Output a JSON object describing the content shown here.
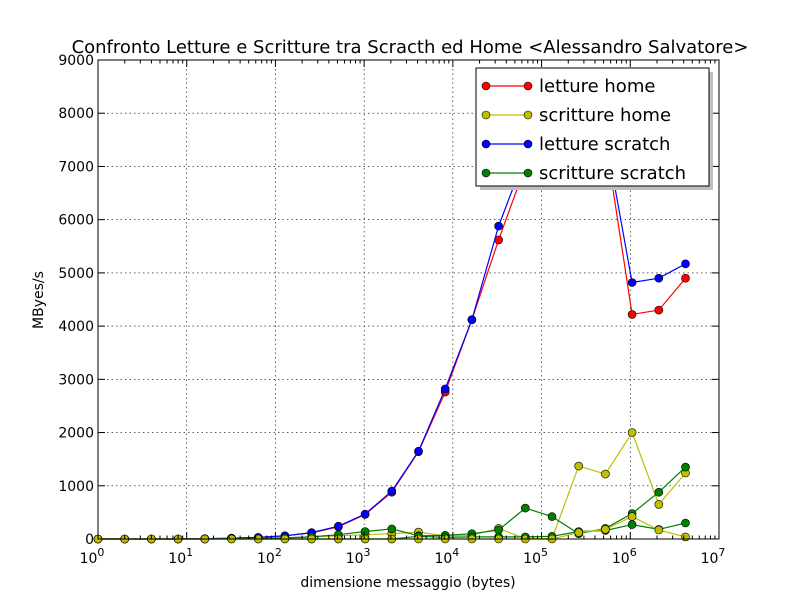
{
  "chart_data": {
    "type": "line",
    "title": "Confronto Letture e Scritture tra Scracth ed Home  <Alessandro Salvatore>",
    "xlabel": "dimensione messaggio (bytes)",
    "ylabel": "MByes/s",
    "xscale": "log",
    "xlim": [
      1,
      10000000
    ],
    "ylim": [
      0,
      9000
    ],
    "grid": true,
    "legend_position": "top-right",
    "x_ticks": [
      {
        "base": "10",
        "exp": "0"
      },
      {
        "base": "10",
        "exp": "1"
      },
      {
        "base": "10",
        "exp": "2"
      },
      {
        "base": "10",
        "exp": "3"
      },
      {
        "base": "10",
        "exp": "4"
      },
      {
        "base": "10",
        "exp": "5"
      },
      {
        "base": "10",
        "exp": "6"
      },
      {
        "base": "10",
        "exp": "7"
      }
    ],
    "y_ticks": [
      "0",
      "1000",
      "2000",
      "3000",
      "4000",
      "5000",
      "6000",
      "7000",
      "8000",
      "9000"
    ],
    "x": [
      1,
      2,
      4,
      8,
      16,
      32,
      64,
      128,
      256,
      512,
      1024,
      2048,
      4096,
      8192,
      16384,
      32768,
      65536,
      131072,
      262144,
      524288,
      1048576,
      2097152,
      4194304
    ],
    "series": [
      {
        "name": "letture home",
        "color": "#ff0000",
        "values": [
          0,
          0,
          0,
          0,
          5,
          15,
          30,
          60,
          115,
          230,
          460,
          880,
          1640,
          2760,
          4120,
          5620,
          7000,
          8000,
          8000,
          7500,
          4220,
          4300,
          4900
        ]
      },
      {
        "name": "scritture home",
        "color": "#bfbf00",
        "values": [
          0,
          0,
          0,
          0,
          0,
          5,
          10,
          20,
          40,
          60,
          80,
          100,
          130,
          60,
          70,
          200,
          10,
          10,
          1370,
          1220,
          2000,
          650,
          1240
        ]
      },
      {
        "name": "letture scratch",
        "color": "#0000ff",
        "values": [
          0,
          0,
          0,
          0,
          5,
          15,
          30,
          60,
          120,
          240,
          470,
          900,
          1650,
          2820,
          4120,
          5880,
          7200,
          8200,
          8200,
          7600,
          4820,
          4900,
          5170
        ]
      },
      {
        "name": "scritture scratch",
        "color": "#008000",
        "values": [
          0,
          0,
          0,
          0,
          0,
          5,
          10,
          20,
          40,
          80,
          140,
          190,
          60,
          70,
          100,
          170,
          580,
          420,
          100,
          200,
          480,
          880,
          1350
        ]
      },
      {
        "name": "",
        "color": "#008000",
        "legend": false,
        "values": [
          0,
          0,
          0,
          0,
          0,
          0,
          0,
          0,
          0,
          0,
          0,
          0,
          50,
          30,
          40,
          40,
          40,
          50,
          140,
          160,
          270,
          180,
          300
        ]
      },
      {
        "name": "",
        "color": "#bfbf00",
        "legend": false,
        "values": [
          0,
          0,
          0,
          0,
          0,
          0,
          0,
          0,
          0,
          0,
          0,
          0,
          0,
          0,
          0,
          0,
          0,
          0,
          120,
          180,
          420,
          170,
          40
        ]
      }
    ]
  }
}
